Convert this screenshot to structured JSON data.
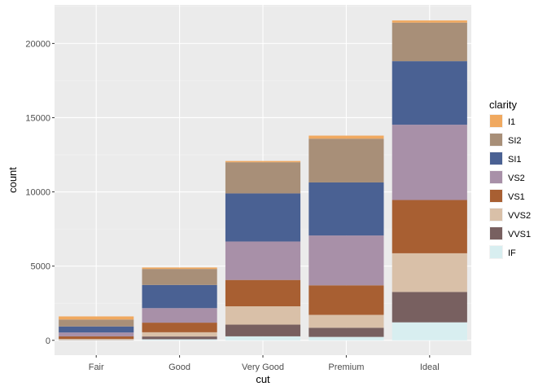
{
  "chart_data": {
    "type": "bar",
    "stacked": true,
    "title": "",
    "xlabel": "cut",
    "ylabel": "count",
    "ylim": [
      -1000,
      22600
    ],
    "yticks": [
      0,
      5000,
      10000,
      15000,
      20000
    ],
    "ytick_labels": [
      "0",
      "5000",
      "10000",
      "15000",
      "20000"
    ],
    "categories": [
      "Fair",
      "Good",
      "Very Good",
      "Premium",
      "Ideal"
    ],
    "legend_title": "clarity",
    "legend_position": "right",
    "grid": true,
    "series": [
      {
        "name": "I1",
        "color": "#f0a960",
        "values": [
          210,
          96,
          84,
          205,
          146
        ]
      },
      {
        "name": "SI2",
        "color": "#a88f78",
        "values": [
          466,
          1081,
          2100,
          2949,
          2598
        ]
      },
      {
        "name": "SI1",
        "color": "#4a6193",
        "values": [
          408,
          1560,
          3240,
          3575,
          4282
        ]
      },
      {
        "name": "VS2",
        "color": "#a890a8",
        "values": [
          261,
          978,
          2591,
          3357,
          5071
        ]
      },
      {
        "name": "VS1",
        "color": "#a85f32",
        "values": [
          170,
          648,
          1775,
          1989,
          3589
        ]
      },
      {
        "name": "VVS2",
        "color": "#d9c0a8",
        "values": [
          69,
          286,
          1235,
          870,
          2606
        ]
      },
      {
        "name": "VVS1",
        "color": "#786060",
        "values": [
          17,
          186,
          789,
          616,
          2047
        ]
      },
      {
        "name": "IF",
        "color": "#d8eef0",
        "values": [
          9,
          71,
          268,
          230,
          1212
        ]
      }
    ]
  },
  "colors": {
    "panel_bg": "#ebebeb",
    "grid_major": "#ffffff",
    "tick_text": "#4d4d4d",
    "tick_mark": "#333333"
  }
}
